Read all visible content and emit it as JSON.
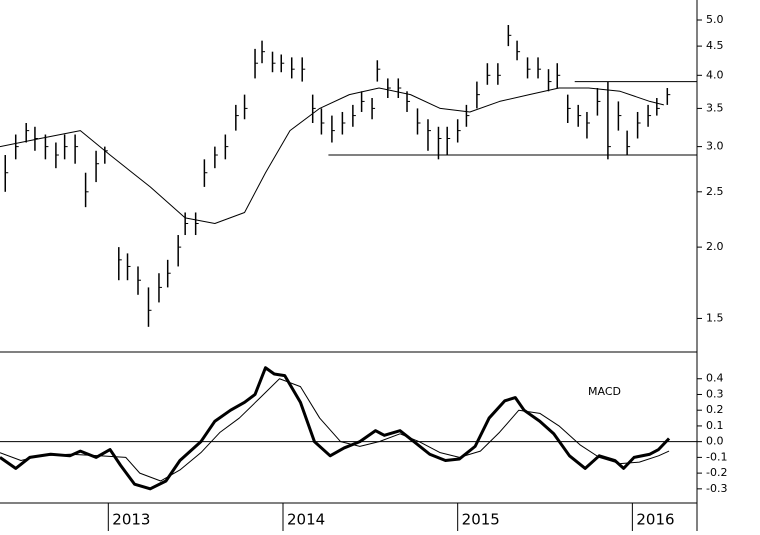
{
  "chart_data": [
    {
      "type": "ohlc",
      "log_scale": true,
      "color": "#000000",
      "xlim": [
        2012.38,
        2016.37
      ],
      "ylim": [
        1.31,
        5.42
      ],
      "yticks": [
        1.5,
        {
          "value": 2,
          "label": "2.0"
        },
        2.5,
        {
          "value": 3,
          "label": "3.0"
        },
        3.5,
        {
          "value": 4,
          "label": "4.0"
        },
        4.5,
        {
          "value": 5,
          "label": "5.0"
        }
      ],
      "bars": {
        "x": [
          2012.41,
          2012.47,
          2012.53,
          2012.58,
          2012.64,
          2012.7,
          2012.75,
          2012.81,
          2012.87,
          2012.93,
          2012.98,
          2013.06,
          2013.11,
          2013.17,
          2013.23,
          2013.29,
          2013.34,
          2013.4,
          2013.44,
          2013.5,
          2013.55,
          2013.61,
          2013.67,
          2013.73,
          2013.78,
          2013.84,
          2013.88,
          2013.94,
          2013.99,
          2014.05,
          2014.11,
          2014.17,
          2014.22,
          2014.28,
          2014.34,
          2014.4,
          2014.45,
          2014.51,
          2014.54,
          2014.6,
          2014.66,
          2014.71,
          2014.77,
          2014.83,
          2014.89,
          2014.94,
          2015.0,
          2015.05,
          2015.11,
          2015.17,
          2015.23,
          2015.29,
          2015.34,
          2015.4,
          2015.46,
          2015.52,
          2015.57,
          2015.63,
          2015.69,
          2015.74,
          2015.8,
          2015.86,
          2015.92,
          2015.97,
          2016.03,
          2016.09,
          2016.14,
          2016.2
        ],
        "high": [
          2.9,
          3.15,
          3.3,
          3.25,
          3.15,
          3.05,
          3.15,
          3.15,
          2.7,
          2.95,
          3.0,
          2.0,
          1.95,
          1.85,
          1.7,
          1.8,
          1.9,
          2.1,
          2.3,
          2.3,
          2.85,
          3.0,
          3.15,
          3.55,
          3.7,
          4.45,
          4.6,
          4.4,
          4.35,
          4.3,
          4.3,
          3.7,
          3.5,
          3.4,
          3.45,
          3.55,
          3.75,
          3.65,
          4.25,
          3.95,
          3.95,
          3.75,
          3.5,
          3.35,
          3.25,
          3.25,
          3.35,
          3.55,
          3.9,
          4.2,
          4.2,
          4.9,
          4.6,
          4.3,
          4.3,
          4.1,
          4.2,
          3.7,
          3.55,
          3.45,
          3.8,
          3.9,
          3.6,
          3.2,
          3.45,
          3.55,
          3.65,
          3.8
        ],
        "low": [
          2.5,
          2.85,
          3.05,
          2.95,
          2.85,
          2.75,
          2.85,
          2.8,
          2.35,
          2.6,
          2.8,
          1.75,
          1.75,
          1.65,
          1.45,
          1.6,
          1.7,
          1.85,
          2.1,
          2.1,
          2.55,
          2.75,
          2.85,
          3.2,
          3.35,
          3.95,
          4.2,
          4.05,
          4.05,
          3.95,
          3.9,
          3.3,
          3.15,
          3.05,
          3.15,
          3.25,
          3.45,
          3.35,
          3.9,
          3.65,
          3.65,
          3.45,
          3.15,
          2.95,
          2.85,
          2.9,
          3.05,
          3.25,
          3.5,
          3.85,
          3.85,
          4.5,
          4.25,
          3.95,
          3.95,
          3.75,
          3.8,
          3.3,
          3.25,
          3.1,
          3.4,
          2.85,
          3.2,
          2.9,
          3.1,
          3.25,
          3.4,
          3.55
        ],
        "close": [
          2.7,
          3.0,
          3.2,
          3.1,
          3.0,
          2.9,
          3.0,
          3.0,
          2.5,
          2.8,
          2.95,
          1.9,
          1.85,
          1.75,
          1.55,
          1.7,
          1.8,
          2.0,
          2.2,
          2.2,
          2.7,
          2.9,
          3.0,
          3.4,
          3.5,
          4.2,
          4.4,
          4.2,
          4.2,
          4.1,
          4.1,
          3.5,
          3.3,
          3.2,
          3.3,
          3.4,
          3.6,
          3.5,
          4.1,
          3.8,
          3.8,
          3.6,
          3.3,
          3.2,
          3.1,
          3.1,
          3.2,
          3.4,
          3.7,
          4.0,
          4.0,
          4.7,
          4.4,
          4.1,
          4.1,
          3.9,
          4.0,
          3.5,
          3.4,
          3.3,
          3.6,
          3.0,
          3.4,
          3.0,
          3.3,
          3.4,
          3.5,
          3.7
        ]
      },
      "series": [
        {
          "color": "#000000",
          "x": [
            2012.38,
            2012.61,
            2012.84,
            2013.01,
            2013.24,
            2013.44,
            2013.61,
            2013.78,
            2013.9,
            2014.04,
            2014.21,
            2014.38,
            2014.55,
            2014.73,
            2014.9,
            2015.07,
            2015.24,
            2015.41,
            2015.58,
            2015.75,
            2015.93,
            2016.1,
            2016.18
          ],
          "values": [
            3.0,
            3.1,
            3.2,
            2.9,
            2.55,
            2.25,
            2.2,
            2.3,
            2.7,
            3.2,
            3.5,
            3.7,
            3.8,
            3.7,
            3.5,
            3.45,
            3.6,
            3.7,
            3.8,
            3.8,
            3.75,
            3.6,
            3.55
          ]
        }
      ],
      "levels": [
        {
          "y": 2.9,
          "x": [
            2014.26,
            2016.37
          ]
        },
        {
          "y": 3.9,
          "x": [
            2015.67,
            2016.37
          ]
        }
      ]
    },
    {
      "type": "line",
      "annotation": "MACD",
      "color": "#000000",
      "zero_line": true,
      "xlim": [
        2012.38,
        2016.37
      ],
      "ylim": [
        -0.39,
        0.57
      ],
      "xticks": [
        2013,
        2014,
        2015,
        2016
      ],
      "yticks": [
        -0.3,
        -0.2,
        -0.1,
        {
          "value": 0,
          "label": "0.0"
        },
        0.1,
        0.2,
        0.3,
        0.4
      ],
      "series": [
        {
          "color": "#000000",
          "width": 3,
          "x": [
            2012.38,
            2012.47,
            2012.55,
            2012.67,
            2012.78,
            2012.84,
            2012.93,
            2013.01,
            2013.07,
            2013.15,
            2013.24,
            2013.33,
            2013.41,
            2013.53,
            2013.61,
            2013.7,
            2013.78,
            2013.84,
            2013.9,
            2013.95,
            2014.01,
            2014.1,
            2014.18,
            2014.27,
            2014.35,
            2014.44,
            2014.53,
            2014.58,
            2014.67,
            2014.75,
            2014.84,
            2014.93,
            2015.01,
            2015.1,
            2015.18,
            2015.27,
            2015.33,
            2015.38,
            2015.47,
            2015.55,
            2015.64,
            2015.73,
            2015.81,
            2015.9,
            2015.95,
            2016.01,
            2016.1,
            2016.15,
            2016.21
          ],
          "values": [
            -0.1,
            -0.17,
            -0.1,
            -0.08,
            -0.09,
            -0.06,
            -0.1,
            -0.05,
            -0.15,
            -0.27,
            -0.3,
            -0.25,
            -0.12,
            0.0,
            0.13,
            0.2,
            0.25,
            0.3,
            0.47,
            0.43,
            0.42,
            0.25,
            0.0,
            -0.09,
            -0.04,
            0.0,
            0.07,
            0.04,
            0.07,
            0.0,
            -0.08,
            -0.12,
            -0.11,
            -0.03,
            0.15,
            0.26,
            0.28,
            0.2,
            0.13,
            0.05,
            -0.09,
            -0.17,
            -0.09,
            -0.12,
            -0.17,
            -0.1,
            -0.08,
            -0.05,
            0.02
          ]
        },
        {
          "color": "#000000",
          "width": 1,
          "x": [
            2012.38,
            2012.5,
            2012.61,
            2012.78,
            2012.95,
            2013.1,
            2013.18,
            2013.3,
            2013.41,
            2013.53,
            2013.64,
            2013.75,
            2013.87,
            2013.98,
            2014.1,
            2014.21,
            2014.33,
            2014.44,
            2014.55,
            2014.67,
            2014.78,
            2014.9,
            2015.01,
            2015.13,
            2015.24,
            2015.35,
            2015.47,
            2015.58,
            2015.7,
            2015.81,
            2015.93,
            2016.04,
            2016.15,
            2016.21
          ],
          "values": [
            -0.07,
            -0.12,
            -0.09,
            -0.08,
            -0.09,
            -0.1,
            -0.2,
            -0.25,
            -0.18,
            -0.07,
            0.06,
            0.15,
            0.28,
            0.4,
            0.35,
            0.15,
            0.0,
            -0.03,
            0.0,
            0.05,
            0.0,
            -0.07,
            -0.1,
            -0.06,
            0.06,
            0.2,
            0.18,
            0.1,
            -0.02,
            -0.1,
            -0.14,
            -0.13,
            -0.09,
            -0.06
          ]
        }
      ]
    }
  ]
}
